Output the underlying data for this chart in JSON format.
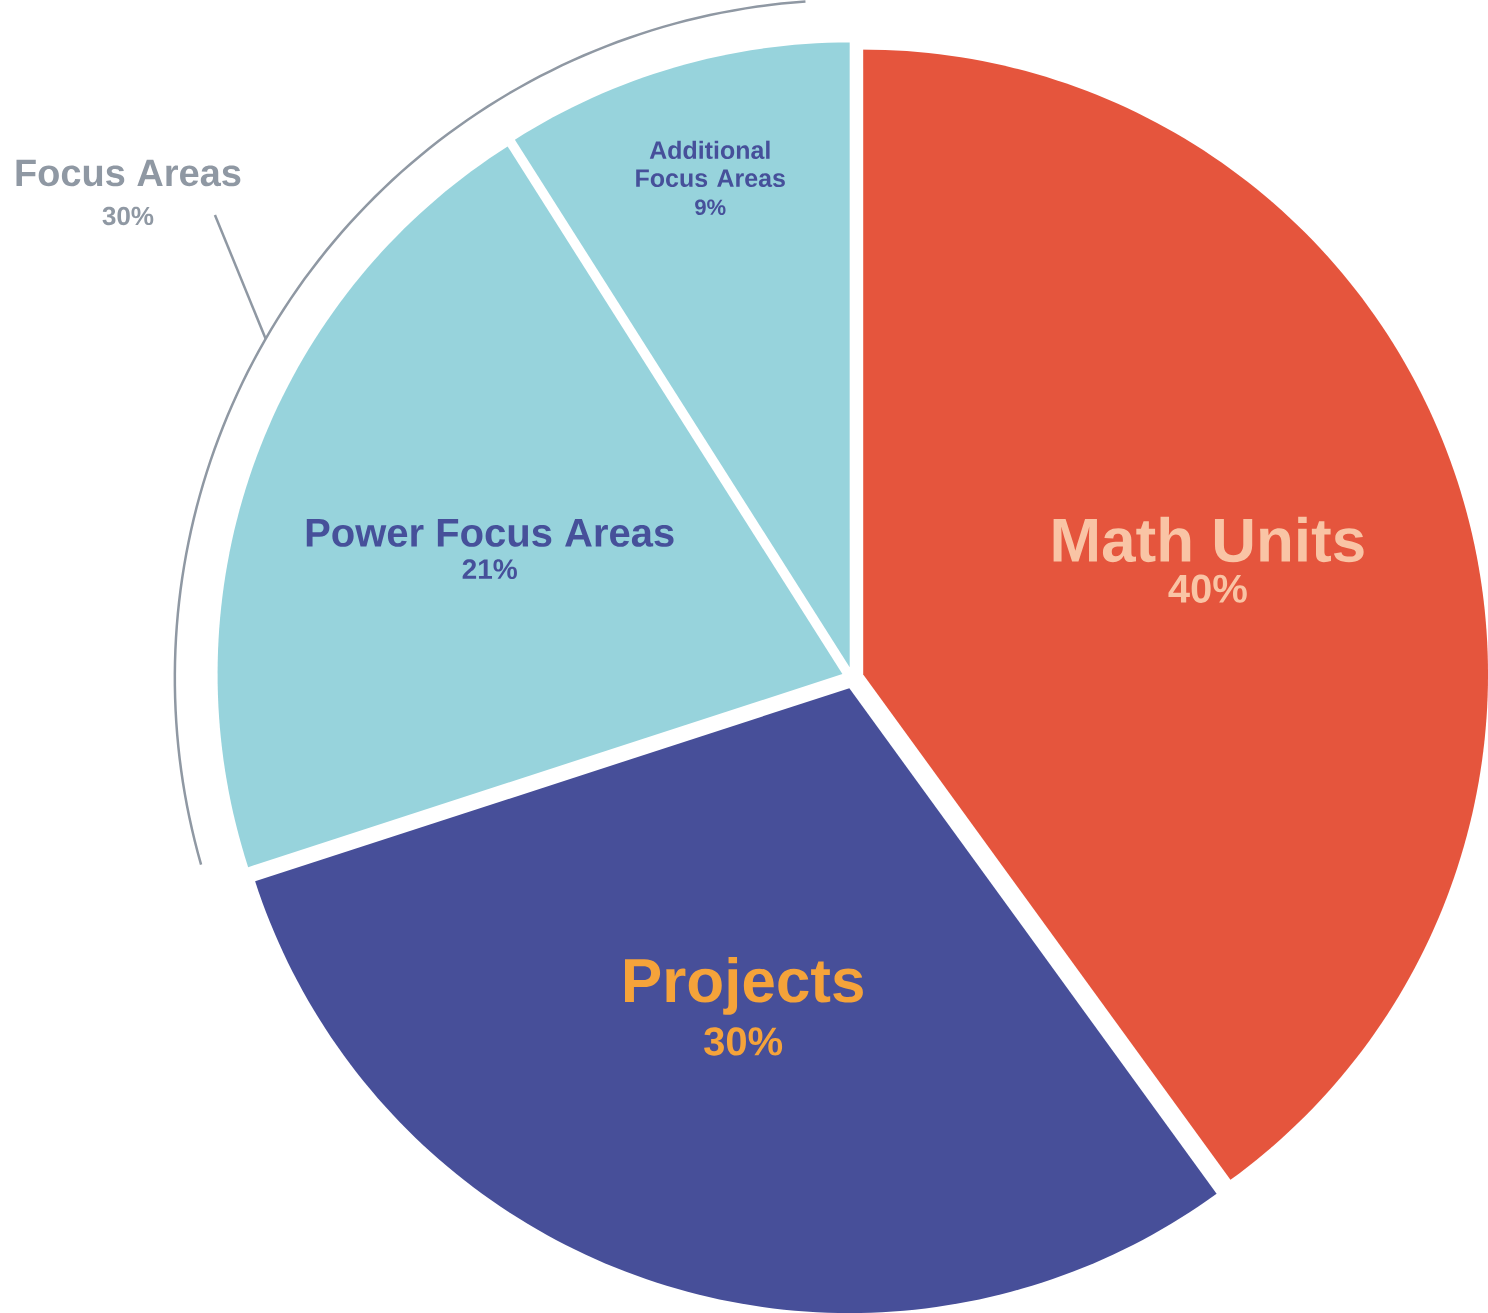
{
  "chart_data": {
    "type": "pie",
    "categories": [
      "Math Units",
      "Projects",
      "Power Focus Areas",
      "Additional Focus Areas"
    ],
    "values": [
      40,
      30,
      21,
      9
    ],
    "colors": [
      "#e5553d",
      "#474f99",
      "#97d3dc",
      "#97d3dc"
    ],
    "value_labels": [
      "40%",
      "30%",
      "21%",
      "9%"
    ],
    "annotations": [
      "Focus Areas",
      "30%"
    ]
  }
}
